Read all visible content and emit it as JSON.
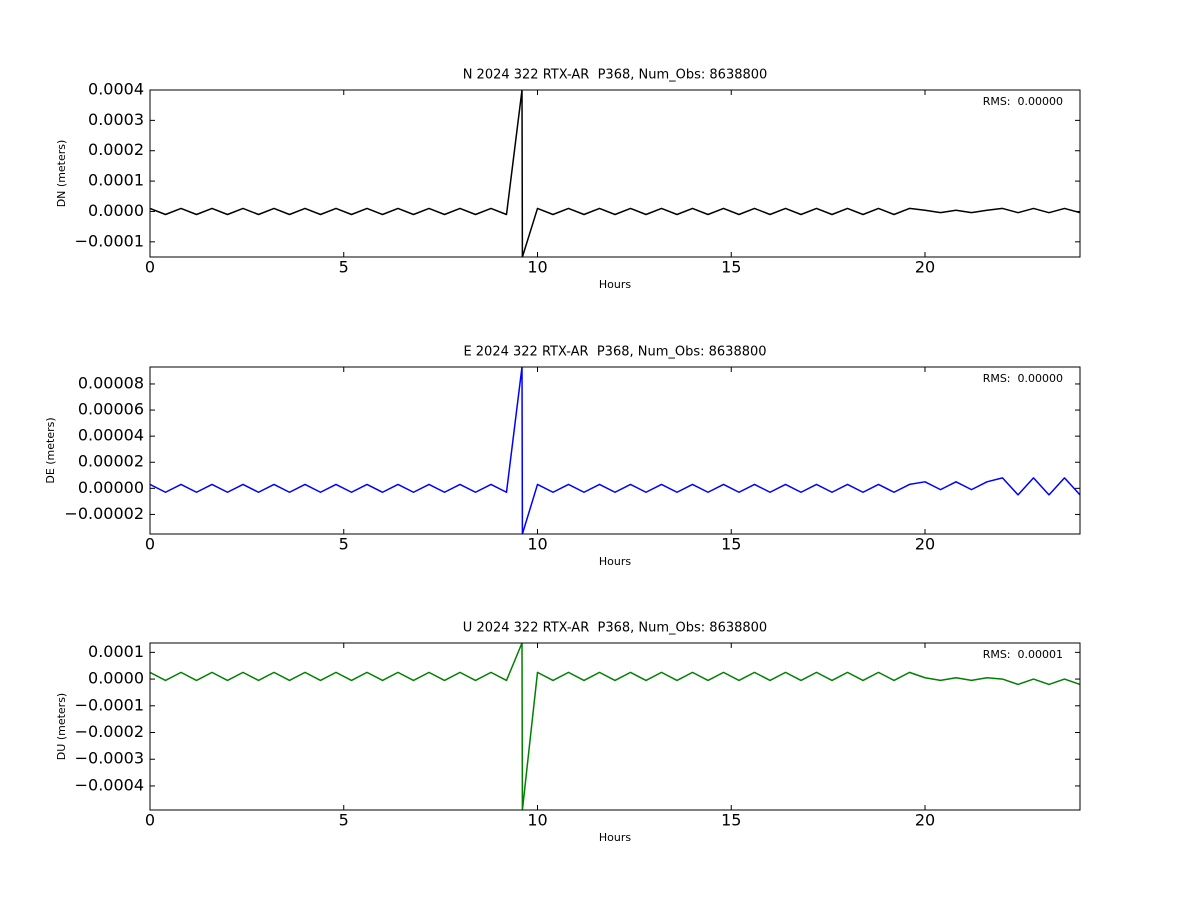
{
  "chart_data": [
    {
      "type": "line",
      "title": "N 2024 322 RTX-AR  P368, Num_Obs: 8638800",
      "x_label": "Hours",
      "y_label": "DN (meters)",
      "annotation": "RMS:  0.00000",
      "annotation_color": "#0000ff",
      "color": "#000000",
      "grid": false,
      "xlim": [
        0,
        24
      ],
      "xticks": [
        0,
        5,
        10,
        15,
        20
      ],
      "ylim": [
        -0.00015,
        0.0004
      ],
      "yticks": [
        {
          "value": -0.0001,
          "label": "−0.0001"
        },
        {
          "value": 0,
          "label": "0.0000"
        },
        0.0001,
        0.0002,
        0.0003,
        0.0004
      ],
      "x": [
        0,
        0.4,
        0.8,
        1.2,
        1.6,
        2,
        2.4,
        2.8,
        3.2,
        3.6,
        4,
        4.4,
        4.8,
        5.2,
        5.6,
        6,
        6.4,
        6.8,
        7.2,
        7.6,
        8,
        8.4,
        8.8,
        9.2,
        9.6,
        9.61,
        10,
        10.4,
        10.8,
        11.2,
        11.6,
        12,
        12.4,
        12.8,
        13.2,
        13.6,
        14,
        14.4,
        14.8,
        15.2,
        15.6,
        16,
        16.4,
        16.8,
        17.2,
        17.6,
        18,
        18.4,
        18.8,
        19.2,
        19.6,
        20,
        20.4,
        20.8,
        21.2,
        21.6,
        22,
        22.4,
        22.8,
        23.2,
        23.6,
        24
      ],
      "values": [
        1e-05,
        -1e-05,
        1e-05,
        -1e-05,
        1e-05,
        -1e-05,
        1e-05,
        -1e-05,
        1e-05,
        -1e-05,
        1e-05,
        -1e-05,
        1e-05,
        -1e-05,
        1e-05,
        -1e-05,
        1e-05,
        -1e-05,
        1e-05,
        -1e-05,
        1e-05,
        -1e-05,
        1e-05,
        -1e-05,
        0.0004,
        -0.00015,
        1e-05,
        -1e-05,
        1e-05,
        -1e-05,
        1e-05,
        -1e-05,
        1e-05,
        -1e-05,
        1e-05,
        -1e-05,
        1e-05,
        -1e-05,
        1e-05,
        -1e-05,
        1e-05,
        -1e-05,
        1e-05,
        -1e-05,
        1e-05,
        -1e-05,
        1e-05,
        -1e-05,
        1e-05,
        -1e-05,
        1e-05,
        4e-06,
        -4e-06,
        4e-06,
        -4e-06,
        4e-06,
        1e-05,
        -4e-06,
        1e-05,
        -4e-06,
        1e-05,
        -4e-06
      ]
    },
    {
      "type": "line",
      "title": "E 2024 322 RTX-AR  P368, Num_Obs: 8638800",
      "x_label": "Hours",
      "y_label": "DE (meters)",
      "annotation": "RMS:  0.00000",
      "annotation_color": "#0000ff",
      "color": "#0000ff",
      "grid": false,
      "xlim": [
        0,
        24
      ],
      "xticks": [
        0,
        5,
        10,
        15,
        20
      ],
      "ylim": [
        -3.5e-05,
        9.3e-05
      ],
      "yticks": [
        {
          "value": -2e-05,
          "label": "−0.00002"
        },
        {
          "value": 0,
          "label": "0.00000"
        },
        2e-05,
        4e-05,
        6e-05,
        8e-05
      ],
      "x": [
        0,
        0.4,
        0.8,
        1.2,
        1.6,
        2,
        2.4,
        2.8,
        3.2,
        3.6,
        4,
        4.4,
        4.8,
        5.2,
        5.6,
        6,
        6.4,
        6.8,
        7.2,
        7.6,
        8,
        8.4,
        8.8,
        9.2,
        9.6,
        9.61,
        10,
        10.4,
        10.8,
        11.2,
        11.6,
        12,
        12.4,
        12.8,
        13.2,
        13.6,
        14,
        14.4,
        14.8,
        15.2,
        15.6,
        16,
        16.4,
        16.8,
        17.2,
        17.6,
        18,
        18.4,
        18.8,
        19.2,
        19.6,
        20,
        20.4,
        20.8,
        21.2,
        21.6,
        22,
        22.4,
        22.8,
        23.2,
        23.6,
        24
      ],
      "values": [
        3e-06,
        -3e-06,
        3e-06,
        -3e-06,
        3e-06,
        -3e-06,
        3e-06,
        -3e-06,
        3e-06,
        -3e-06,
        3e-06,
        -3e-06,
        3e-06,
        -3e-06,
        3e-06,
        -3e-06,
        3e-06,
        -3e-06,
        3e-06,
        -3e-06,
        3e-06,
        -3e-06,
        3e-06,
        -3e-06,
        9.3e-05,
        -3.5e-05,
        3e-06,
        -3e-06,
        3e-06,
        -3e-06,
        3e-06,
        -3e-06,
        3e-06,
        -3e-06,
        3e-06,
        -3e-06,
        3e-06,
        -3e-06,
        3e-06,
        -3e-06,
        3e-06,
        -3e-06,
        3e-06,
        -3e-06,
        3e-06,
        -3e-06,
        3e-06,
        -3e-06,
        3e-06,
        -3e-06,
        3e-06,
        5e-06,
        -1e-06,
        5e-06,
        -1e-06,
        5e-06,
        8e-06,
        -5e-06,
        8e-06,
        -5e-06,
        8e-06,
        -5e-06
      ]
    },
    {
      "type": "line",
      "title": "U 2024 322 RTX-AR  P368, Num_Obs: 8638800",
      "x_label": "Hours",
      "y_label": "DU (meters)",
      "annotation": "RMS:  0.00001",
      "annotation_color": "#0000ff",
      "color": "#008000",
      "grid": false,
      "xlim": [
        0,
        24
      ],
      "xticks": [
        0,
        5,
        10,
        15,
        20
      ],
      "ylim": [
        -0.00049,
        0.000135
      ],
      "yticks": [
        {
          "value": -0.0004,
          "label": "−0.0004"
        },
        {
          "value": -0.0003,
          "label": "−0.0003"
        },
        {
          "value": -0.0002,
          "label": "−0.0002"
        },
        {
          "value": -0.0001,
          "label": "−0.0001"
        },
        {
          "value": 0,
          "label": "0.0000"
        },
        0.0001
      ],
      "x": [
        0,
        0.4,
        0.8,
        1.2,
        1.6,
        2,
        2.4,
        2.8,
        3.2,
        3.6,
        4,
        4.4,
        4.8,
        5.2,
        5.6,
        6,
        6.4,
        6.8,
        7.2,
        7.6,
        8,
        8.4,
        8.8,
        9.2,
        9.6,
        9.61,
        10,
        10.4,
        10.8,
        11.2,
        11.6,
        12,
        12.4,
        12.8,
        13.2,
        13.6,
        14,
        14.4,
        14.8,
        15.2,
        15.6,
        16,
        16.4,
        16.8,
        17.2,
        17.6,
        18,
        18.4,
        18.8,
        19.2,
        19.6,
        20,
        20.4,
        20.8,
        21.2,
        21.6,
        22,
        22.4,
        22.8,
        23.2,
        23.6,
        24
      ],
      "values": [
        2.5e-05,
        -5e-06,
        2.5e-05,
        -5e-06,
        2.5e-05,
        -5e-06,
        2.5e-05,
        -5e-06,
        2.5e-05,
        -5e-06,
        2.5e-05,
        -5e-06,
        2.5e-05,
        -5e-06,
        2.5e-05,
        -5e-06,
        2.5e-05,
        -5e-06,
        2.5e-05,
        -5e-06,
        2.5e-05,
        -5e-06,
        2.5e-05,
        -5e-06,
        0.000135,
        -0.00049,
        2.5e-05,
        -5e-06,
        2.5e-05,
        -5e-06,
        2.5e-05,
        -5e-06,
        2.5e-05,
        -5e-06,
        2.5e-05,
        -5e-06,
        2.5e-05,
        -5e-06,
        2.5e-05,
        -5e-06,
        2.5e-05,
        -5e-06,
        2.5e-05,
        -5e-06,
        2.5e-05,
        -5e-06,
        2.5e-05,
        -5e-06,
        2.5e-05,
        -5e-06,
        2.5e-05,
        5e-06,
        -5e-06,
        5e-06,
        -5e-06,
        5e-06,
        0,
        -2e-05,
        0,
        -2e-05,
        0,
        -2e-05
      ]
    }
  ]
}
